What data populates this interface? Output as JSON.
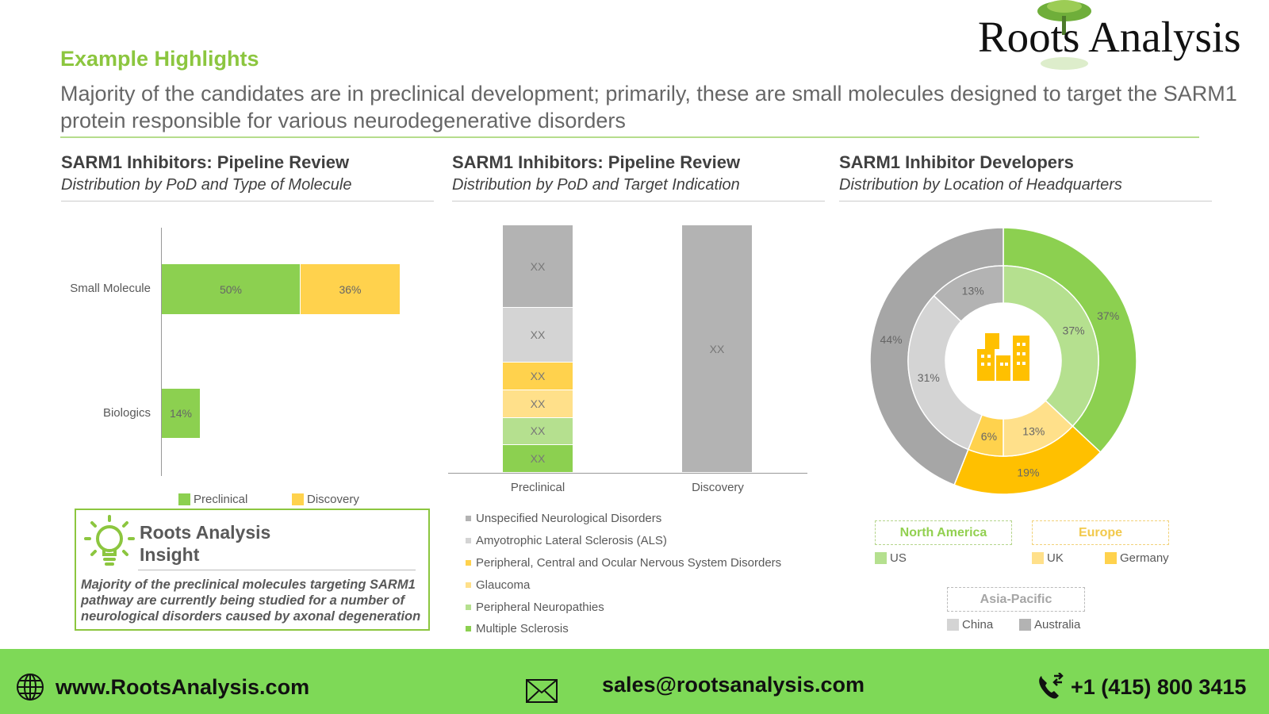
{
  "header": {
    "section": "Example Highlights",
    "summary": "Majority of the candidates are in preclinical development; primarily, these are small molecules designed to target the SARM1 protein responsible for various neurodegenerative disorders",
    "logo_text": "Roots Analysis"
  },
  "colors": {
    "green": "#8cd050",
    "gold": "#ffd24d",
    "light_green": "#b5e08f",
    "light_yellow": "#ffe08a",
    "grey": "#b3b3b3",
    "light_grey": "#d4d4d4",
    "brand_green": "#8cc63f",
    "footer": "#7ed957"
  },
  "panels": [
    {
      "title": "SARM1 Inhibitors: Pipeline Review",
      "subtitle": "Distribution by PoD and Type of Molecule"
    },
    {
      "title": "SARM1 Inhibitors: Pipeline Review",
      "subtitle": "Distribution by PoD and Target Indication"
    },
    {
      "title": "SARM1 Inhibitor Developers",
      "subtitle": "Distribution by Location of Headquarters"
    }
  ],
  "chart_data": [
    {
      "type": "bar",
      "orientation": "horizontal",
      "stacked": true,
      "categories": [
        "Small Molecule",
        "Biologics"
      ],
      "series": [
        {
          "name": "Preclinical",
          "values": [
            50,
            14
          ],
          "labels": [
            "50%",
            "14%"
          ],
          "color": "#8cd050"
        },
        {
          "name": "Discovery",
          "values": [
            36,
            0
          ],
          "labels": [
            "36%",
            ""
          ],
          "color": "#ffd24d"
        }
      ],
      "legend": [
        "Preclinical",
        "Discovery"
      ],
      "legend_position": "bottom",
      "xlim": [
        0,
        100
      ]
    },
    {
      "type": "bar",
      "stacked": true,
      "categories": [
        "Preclinical",
        "Discovery"
      ],
      "series": [
        {
          "name": "Multiple Sclerosis",
          "values": [
            1,
            0
          ],
          "label": "XX",
          "color": "#8cd050"
        },
        {
          "name": "Peripheral Neuropathies",
          "values": [
            1,
            0
          ],
          "label": "XX",
          "color": "#b5e08f"
        },
        {
          "name": "Glaucoma",
          "values": [
            1,
            0
          ],
          "label": "XX",
          "color": "#ffe08a"
        },
        {
          "name": "Peripheral, Central and Ocular Nervous System Disorders",
          "values": [
            1,
            0
          ],
          "label": "XX",
          "color": "#ffd24d"
        },
        {
          "name": "Amyotrophic Lateral Sclerosis (ALS)",
          "values": [
            2,
            0
          ],
          "label": "XX",
          "color": "#d4d4d4"
        },
        {
          "name": "Unspecified Neurological Disorders",
          "values": [
            3,
            9
          ],
          "label": "XX",
          "color": "#b3b3b3"
        }
      ],
      "legend_order": [
        "Unspecified Neurological Disorders",
        "Amyotrophic Lateral Sclerosis (ALS)",
        "Peripheral, Central and Ocular Nervous System Disorders",
        "Glaucoma",
        "Peripheral Neuropathies",
        "Multiple Sclerosis"
      ],
      "legend_position": "bottom",
      "ylim": [
        0,
        9
      ]
    },
    {
      "type": "pie",
      "variant": "nested-donut",
      "outer": [
        {
          "name": "North America",
          "value": 37,
          "label": "37%",
          "color": "#8cd050"
        },
        {
          "name": "Europe",
          "value": 19,
          "label": "19%",
          "color": "#ffc000"
        },
        {
          "name": "Asia-Pacific",
          "value": 44,
          "label": "44%",
          "color": "#a6a6a6"
        }
      ],
      "inner": [
        {
          "name": "US",
          "value": 37,
          "label": "37%",
          "color": "#b5e08f"
        },
        {
          "name": "UK",
          "value": 13,
          "label": "13%",
          "color": "#ffe08a"
        },
        {
          "name": "Germany",
          "value": 6,
          "label": "6%",
          "color": "#ffd24d"
        },
        {
          "name": "China",
          "value": 31,
          "label": "31%",
          "color": "#d4d4d4"
        },
        {
          "name": "Australia",
          "value": 13,
          "label": "13%",
          "color": "#b3b3b3"
        }
      ],
      "legend_groups": [
        {
          "name": "North America",
          "color": "#8cd050",
          "items": [
            "US"
          ]
        },
        {
          "name": "Europe",
          "color": "#f2c94c",
          "items": [
            "UK",
            "Germany"
          ]
        },
        {
          "name": "Asia-Pacific",
          "color": "#a6a6a6",
          "items": [
            "China",
            "Australia"
          ]
        }
      ]
    }
  ],
  "insight": {
    "title_line1": "Roots Analysis",
    "title_line2": "Insight",
    "body": "Majority of the preclinical molecules targeting SARM1 pathway are currently being studied for a number of neurological disorders caused by axonal degeneration"
  },
  "footer": {
    "website": "www.RootsAnalysis.com",
    "email": "sales@rootsanalysis.com",
    "phone": "+1 (415) 800 3415"
  }
}
